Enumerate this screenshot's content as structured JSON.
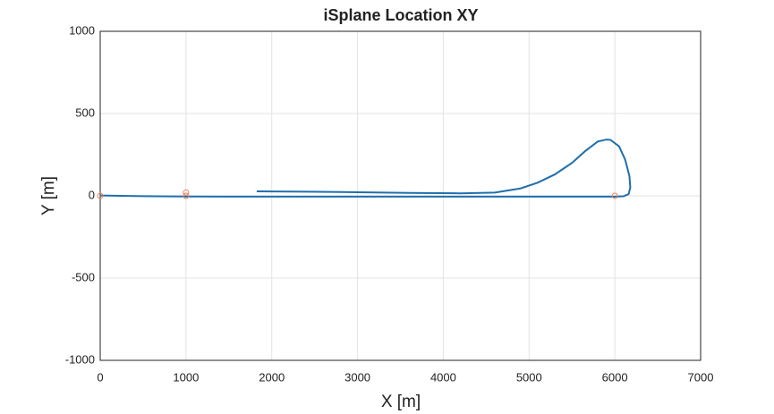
{
  "chart_data": {
    "type": "line",
    "title": "iSplane Location XY",
    "xlabel": "X [m]",
    "ylabel": "Y [m]",
    "xlim": [
      0,
      7000
    ],
    "ylim": [
      -1000,
      1000
    ],
    "xticks": [
      0,
      1000,
      2000,
      3000,
      4000,
      5000,
      6000,
      7000
    ],
    "yticks": [
      -1000,
      -500,
      0,
      500,
      1000
    ],
    "grid": true,
    "series": [
      {
        "color": "#1f6fad",
        "style": "line",
        "x": [
          0,
          500,
          1000,
          2000,
          3000,
          4000,
          5000,
          5800,
          6000,
          6100,
          6160,
          6180,
          6170,
          6120,
          6050,
          5950,
          5900,
          5800,
          5650,
          5500,
          5300,
          5100,
          4900,
          4600,
          4200,
          3600,
          3000,
          2400,
          1825
        ],
        "values": [
          2,
          -2,
          -4,
          -5,
          -5,
          -5,
          -5,
          -5,
          -5,
          -3,
          10,
          50,
          120,
          220,
          300,
          340,
          342,
          330,
          270,
          200,
          130,
          80,
          45,
          20,
          15,
          18,
          22,
          25,
          27
        ]
      },
      {
        "color": "#e8825a",
        "style": "marker",
        "x": [
          0,
          1000,
          1000,
          6000
        ],
        "values": [
          0,
          0,
          20,
          0
        ]
      }
    ]
  }
}
